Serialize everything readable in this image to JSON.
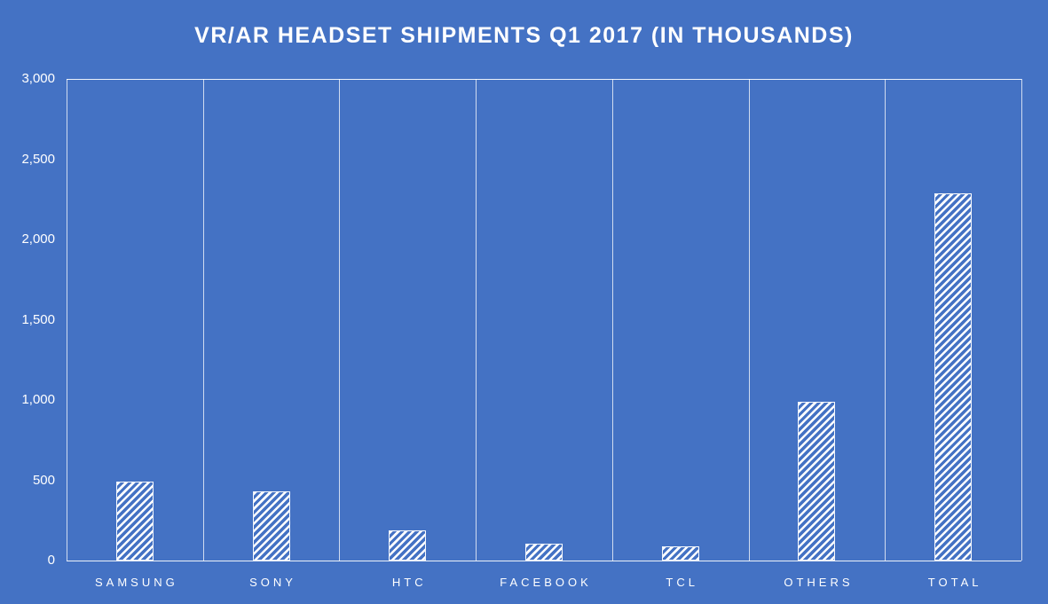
{
  "colors": {
    "background": "#4472C4",
    "text": "#FFFFFF",
    "gridline": "#FFFFFF",
    "bar_pattern": "#FFFFFF"
  },
  "chart_data": {
    "type": "bar",
    "title": "VR/AR HEADSET SHIPMENTS Q1 2017 (IN THOUSANDS)",
    "categories": [
      "SAMSUNG",
      "SONY",
      "HTC",
      "FACEBOOK",
      "TCL",
      "OTHERS",
      "TOTAL"
    ],
    "values": [
      490,
      430,
      190,
      105,
      90,
      990,
      2290
    ],
    "xlabel": "",
    "ylabel": "",
    "ylim": [
      0,
      3000
    ],
    "ytick_interval": 500,
    "yticks": [
      "0",
      "500",
      "1,000",
      "1,500",
      "2,000",
      "2,500",
      "3,000"
    ],
    "grid": "vertical",
    "legend": "none",
    "bar_style": "white-diagonal-hatch"
  }
}
